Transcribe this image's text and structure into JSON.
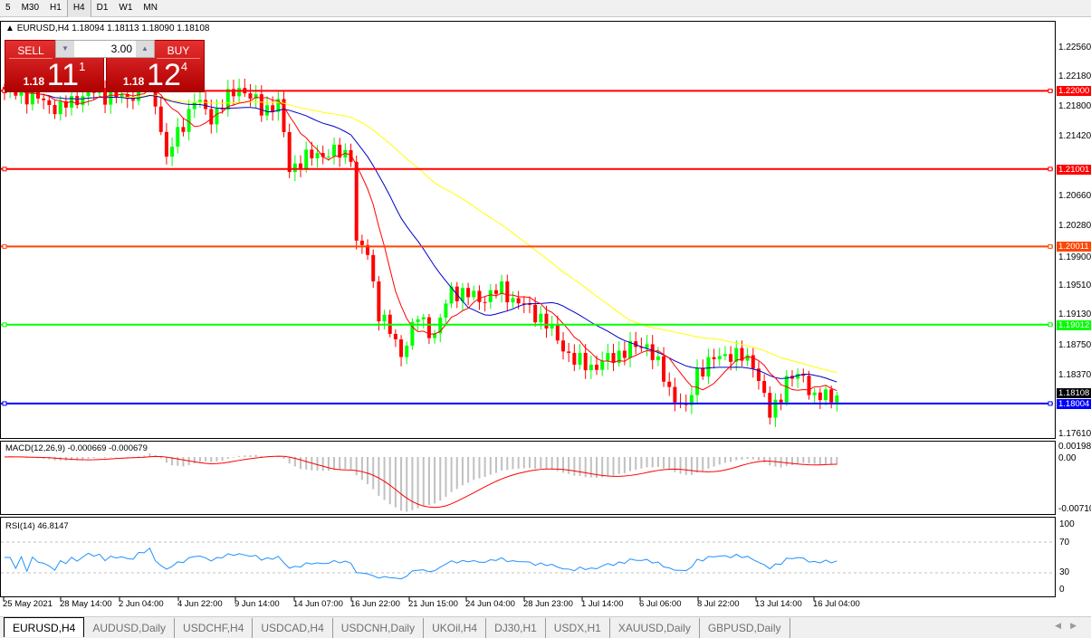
{
  "toolbar": {
    "timeframes": [
      "5",
      "M30",
      "H1",
      "H4",
      "D1",
      "W1",
      "MN"
    ],
    "active": "H4"
  },
  "symbol_info": "EURUSD,H4  1.18094 1.18113 1.18090 1.18108",
  "trade_panel": {
    "sell_label": "SELL",
    "buy_label": "BUY",
    "lot": "3.00",
    "sell": {
      "small": "1.18",
      "big": "11",
      "sup": "1"
    },
    "buy": {
      "small": "1.18",
      "big": "12",
      "sup": "4"
    }
  },
  "price_axis": [
    "1.22560",
    "1.22180",
    "1.21800",
    "1.21420",
    "1.20660",
    "1.20280",
    "1.19900",
    "1.19510",
    "1.19130",
    "1.18750",
    "1.18370",
    "1.17610"
  ],
  "current_price": "1.18108",
  "hlines": [
    {
      "price": "1.22000",
      "color": "#ff0000"
    },
    {
      "price": "1.21001",
      "color": "#ff0000"
    },
    {
      "price": "1.20011",
      "color": "#ff4500"
    },
    {
      "price": "1.19012",
      "color": "#00ff00"
    },
    {
      "price": "1.18004",
      "color": "#0000ff"
    }
  ],
  "macd": {
    "label": "MACD(12,26,9) -0.000669 -0.000679",
    "axis": [
      "0.001988",
      "0.00",
      "-0.00710"
    ]
  },
  "rsi": {
    "label": "RSI(14) 46.8147",
    "axis": [
      "100",
      "70",
      "30",
      "0"
    ]
  },
  "dates": [
    "25 May 2021",
    "28 May 14:00",
    "2 Jun 04:00",
    "4 Jun 22:00",
    "9 Jun 14:00",
    "14 Jun 07:00",
    "16 Jun 22:00",
    "21 Jun 15:00",
    "24 Jun 04:00",
    "28 Jun 23:00",
    "1 Jul 14:00",
    "6 Jul 06:00",
    "8 Jul 22:00",
    "13 Jul 14:00",
    "16 Jul 04:00"
  ],
  "tabs": [
    "EURUSD,H4",
    "AUDUSD,Daily",
    "USDCHF,H4",
    "USDCAD,H4",
    "USDCNH,Daily",
    "UKOil,H4",
    "DJ30,H1",
    "USDX,H1",
    "XAUUSD,Daily",
    "GBPUSD,Daily"
  ],
  "active_tab": "EURUSD,H4",
  "colors": {
    "bull": "#00ff00",
    "bear": "#ff0000",
    "ma_fast": "#ff0000",
    "ma_mid": "#0000cc",
    "ma_slow": "#ffff00",
    "rsi": "#1e90ff",
    "macd_hist": "#c0c0c0",
    "macd_signal": "#ff0000"
  },
  "price_keypoints": [
    [
      0,
      1.22
    ],
    [
      4,
      1.2195
    ],
    [
      10,
      1.2177
    ],
    [
      15,
      1.22
    ],
    [
      22,
      1.2189
    ],
    [
      26,
      1.2224
    ],
    [
      29,
      1.2114
    ],
    [
      34,
      1.2189
    ],
    [
      37,
      1.2166
    ],
    [
      42,
      1.2206
    ],
    [
      46,
      1.2177
    ],
    [
      49,
      1.2183
    ],
    [
      51,
      1.2102
    ],
    [
      56,
      1.212
    ],
    [
      62,
      1.212
    ],
    [
      63,
      1.2004
    ],
    [
      65,
      1.1992
    ],
    [
      67,
      1.1917
    ],
    [
      71,
      1.1865
    ],
    [
      74,
      1.1911
    ],
    [
      77,
      1.1888
    ],
    [
      80,
      1.1946
    ],
    [
      85,
      1.1934
    ],
    [
      89,
      1.1946
    ],
    [
      92,
      1.1929
    ],
    [
      96,
      1.1911
    ],
    [
      102,
      1.1854
    ],
    [
      106,
      1.1848
    ],
    [
      110,
      1.1865
    ],
    [
      115,
      1.1877
    ],
    [
      119,
      1.1819
    ],
    [
      122,
      1.179
    ],
    [
      124,
      1.1842
    ],
    [
      129,
      1.1865
    ],
    [
      134,
      1.1854
    ],
    [
      137,
      1.1784
    ],
    [
      140,
      1.183
    ],
    [
      143,
      1.1836
    ],
    [
      145,
      1.1807
    ],
    [
      149,
      1.18108
    ]
  ]
}
